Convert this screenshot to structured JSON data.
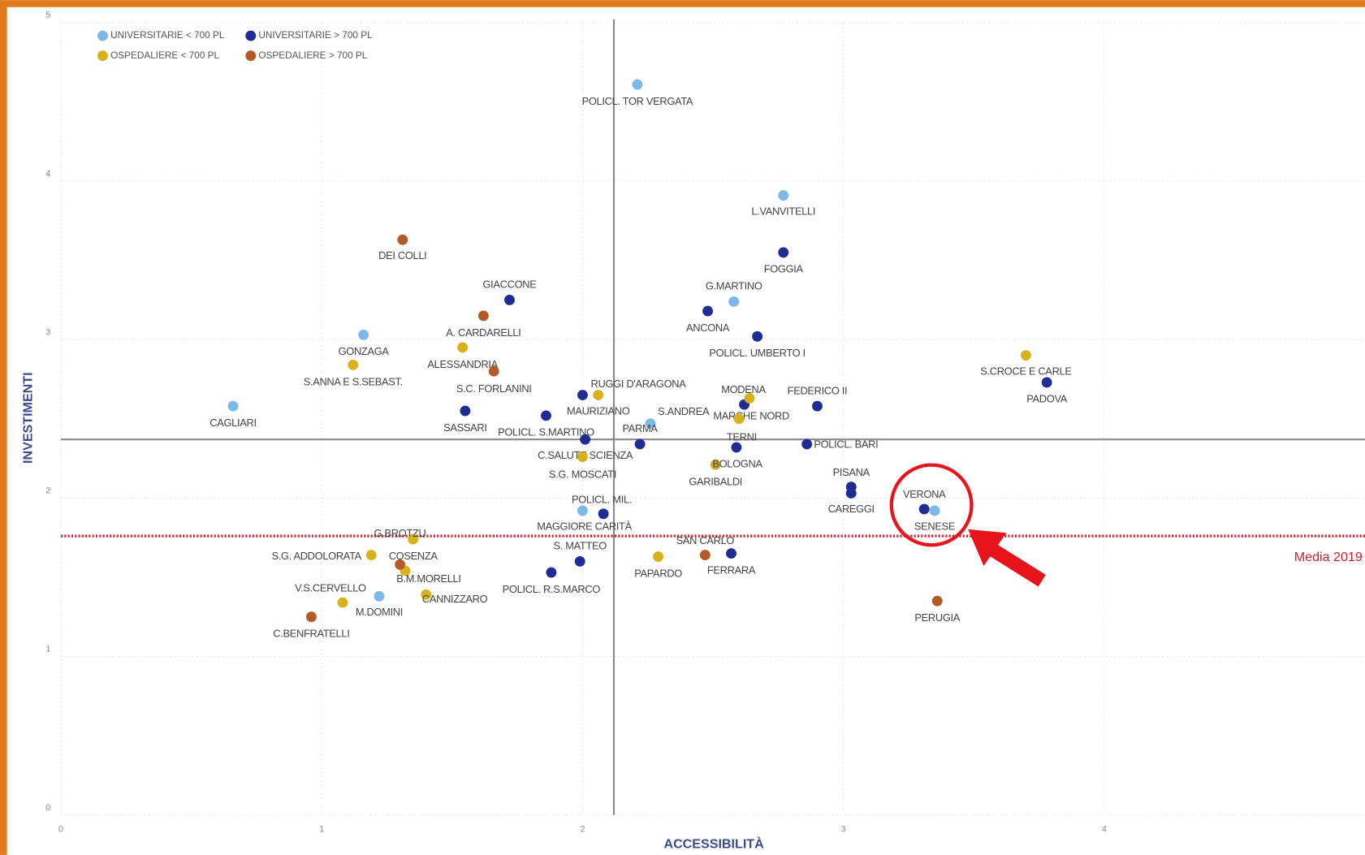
{
  "chart_data": {
    "type": "scatter",
    "x_label": "ACCESSIBILITÀ",
    "y_label": "INVESTIMENTI",
    "xlim": [
      0,
      5
    ],
    "ylim": [
      0,
      5
    ],
    "xticks": [
      0,
      1,
      2,
      3,
      4
    ],
    "yticks": [
      0,
      1,
      2,
      3,
      4,
      5
    ],
    "grid": true,
    "legend": "top-left",
    "reference_lines": [
      {
        "axis": "x",
        "value": 2.12,
        "color": "#8a8a8a",
        "dashed": false
      },
      {
        "axis": "y",
        "value": 2.37,
        "color": "#8a8a8a",
        "dashed": false
      },
      {
        "axis": "y",
        "value": 1.76,
        "color": "#cc1f2b",
        "dashed": true,
        "label": "Media 2019"
      }
    ],
    "series": [
      {
        "name": "UNIVERSITARIE < 700 PL",
        "color": "#7cb9ea",
        "labels": [
          "POLICL. TOR VERGATA",
          "L.VANVITELLI",
          "G.MARTINO",
          "GONZAGA",
          "CAGLIARI",
          "S.ANDREA",
          "POLICL. MIL.",
          "SENESE",
          "M.DOMINI"
        ],
        "x": [
          2.21,
          2.77,
          2.58,
          1.16,
          0.66,
          2.26,
          2.0,
          3.35,
          1.22
        ],
        "values": [
          4.61,
          3.91,
          3.24,
          3.03,
          2.58,
          2.47,
          1.92,
          1.92,
          1.38
        ]
      },
      {
        "name": "UNIVERSITARIE > 700 PL",
        "color": "#1f2c94",
        "labels": [
          "FOGGIA",
          "GIACCONE",
          "ANCONA",
          "POLICL. UMBERTO I",
          "PADOVA",
          "FEDERICO II",
          "MARCHE NORD",
          "RUGGI D'ARAGONA",
          "SASSARI",
          "POLICL. S.MARTINO",
          "C.SALUTE SCIENZA",
          "PARMA",
          "TERNI",
          "POLICL. BARI",
          "PISANA",
          "CAREGGI",
          "VERONA",
          "MAGGIORE CARITÀ",
          "S. MATTEO",
          "FERRARA",
          "POLICL. R.S.MARCO"
        ],
        "x": [
          2.77,
          1.72,
          2.48,
          2.67,
          3.78,
          2.9,
          2.62,
          2.0,
          1.55,
          1.86,
          2.01,
          2.22,
          2.59,
          2.86,
          3.03,
          3.03,
          3.31,
          2.08,
          1.99,
          2.57,
          1.88
        ],
        "values": [
          3.55,
          3.25,
          3.18,
          3.02,
          2.73,
          2.58,
          2.59,
          2.65,
          2.55,
          2.52,
          2.37,
          2.34,
          2.32,
          2.34,
          2.07,
          2.03,
          1.93,
          1.9,
          1.6,
          1.65,
          1.53
        ]
      },
      {
        "name": "OSPEDALIERE < 700 PL",
        "color": "#d8b21c",
        "labels": [
          "S.CROCE E CARLE",
          "ALESSANDRIA",
          "S.ANNA E S.SEBAST.",
          "MAURIZIANO",
          "MODENA",
          "GARIBALDI",
          "S.G. MOSCATI",
          "BOLOGNA",
          "PAPARDO",
          "S.G. ADDOLORATA",
          "G.BROTZU",
          "B.M.MORELLI",
          "CANNIZZARO",
          "V.S.CERVELLO"
        ],
        "x": [
          3.7,
          1.54,
          1.12,
          2.06,
          2.64,
          2.6,
          2.0,
          2.51,
          2.29,
          1.19,
          1.35,
          1.32,
          1.4,
          1.08
        ],
        "values": [
          2.9,
          2.95,
          2.84,
          2.65,
          2.63,
          2.5,
          2.26,
          2.21,
          1.63,
          1.64,
          1.74,
          1.54,
          1.39,
          1.34
        ]
      },
      {
        "name": "OSPEDALIERE > 700 PL",
        "color": "#b25a28",
        "labels": [
          "DEI COLLI",
          "A. CARDARELLI",
          "S.C. FORLANINI",
          "SAN CARLO",
          "PERUGIA",
          "C.BENFRATELLI",
          "COSENZA"
        ],
        "x": [
          1.31,
          1.62,
          1.66,
          2.47,
          3.36,
          0.96,
          1.3
        ],
        "values": [
          3.63,
          3.15,
          2.8,
          1.64,
          1.35,
          1.25,
          1.58
        ]
      }
    ]
  }
}
